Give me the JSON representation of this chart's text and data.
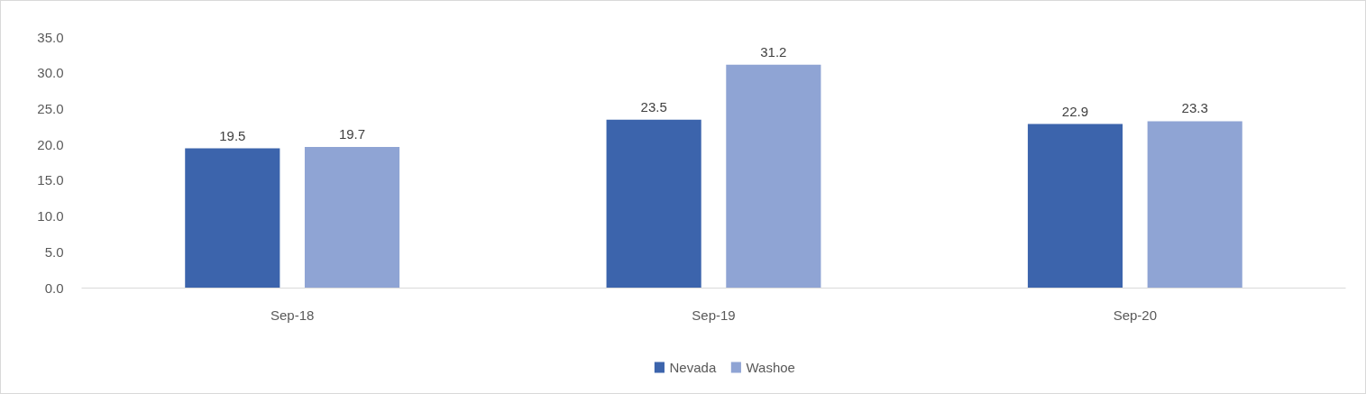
{
  "chart_data": {
    "type": "bar",
    "categories": [
      "Sep-18",
      "Sep-19",
      "Sep-20"
    ],
    "series": [
      {
        "name": "Nevada",
        "color": "#3c64ac",
        "values": [
          19.5,
          23.5,
          22.9
        ]
      },
      {
        "name": "Washoe",
        "color": "#8fa4d4",
        "values": [
          19.7,
          31.2,
          23.3
        ]
      }
    ],
    "ylim": [
      0,
      35
    ],
    "yticks": [
      {
        "value": 0,
        "label": "0.0"
      },
      {
        "value": 5,
        "label": "5.0"
      },
      {
        "value": 10,
        "label": "10.0"
      },
      {
        "value": 15,
        "label": "15.0"
      },
      {
        "value": 20,
        "label": "20.0"
      },
      {
        "value": 25,
        "label": "25.0"
      },
      {
        "value": 30,
        "label": "30.0"
      },
      {
        "value": 35,
        "label": "35.0"
      }
    ],
    "data_labels": true,
    "grid": false,
    "legend": "bottom"
  }
}
